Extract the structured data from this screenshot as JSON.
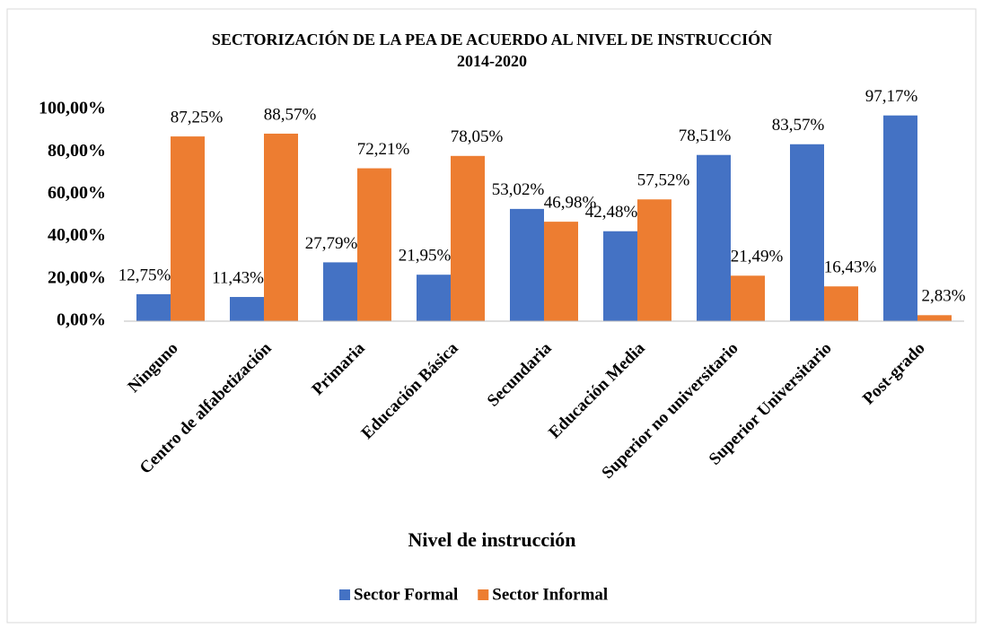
{
  "chart_data": {
    "type": "bar",
    "title": "SECTORIZACIÓN DE LA PEA DE ACUERDO AL NIVEL DE INSTRUCCIÓN",
    "subtitle": "2014-2020",
    "x_label": "Nivel de instrucción",
    "categories": [
      "Ninguno",
      "Centro de alfabetización",
      "Primaria",
      "Educación Básica",
      "Secundaria",
      "Educación  Media",
      "Superior no universitario",
      "Superior Universitario",
      "Post-grado"
    ],
    "series": [
      {
        "name": "Sector Formal",
        "color": "#4472c4",
        "values": [
          12.75,
          11.43,
          27.79,
          21.95,
          53.02,
          42.48,
          78.51,
          83.57,
          97.17
        ],
        "value_labels": [
          "12,75%",
          "11,43%",
          "27,79%",
          "21,95%",
          "53,02%",
          "42,48%",
          "78,51%",
          "83,57%",
          "97,17%"
        ]
      },
      {
        "name": "Sector Informal",
        "color": "#ed7d31",
        "values": [
          87.25,
          88.57,
          72.21,
          78.05,
          46.98,
          57.52,
          21.49,
          16.43,
          2.83
        ],
        "value_labels": [
          "87,25%",
          "88,57%",
          "72,21%",
          "78,05%",
          "46,98%",
          "57,52%",
          "21,49%",
          "16,43%",
          "2,83%"
        ]
      }
    ],
    "ylim": [
      0,
      100
    ],
    "yticks": [
      {
        "value": 0,
        "label": "0,00%"
      },
      {
        "value": 20,
        "label": "20,00%"
      },
      {
        "value": 40,
        "label": "40,00%"
      },
      {
        "value": 60,
        "label": "60,00%"
      },
      {
        "value": 80,
        "label": "80,00%"
      },
      {
        "value": 100,
        "label": "100,00%"
      }
    ],
    "grid": false,
    "legend": "bottom"
  }
}
